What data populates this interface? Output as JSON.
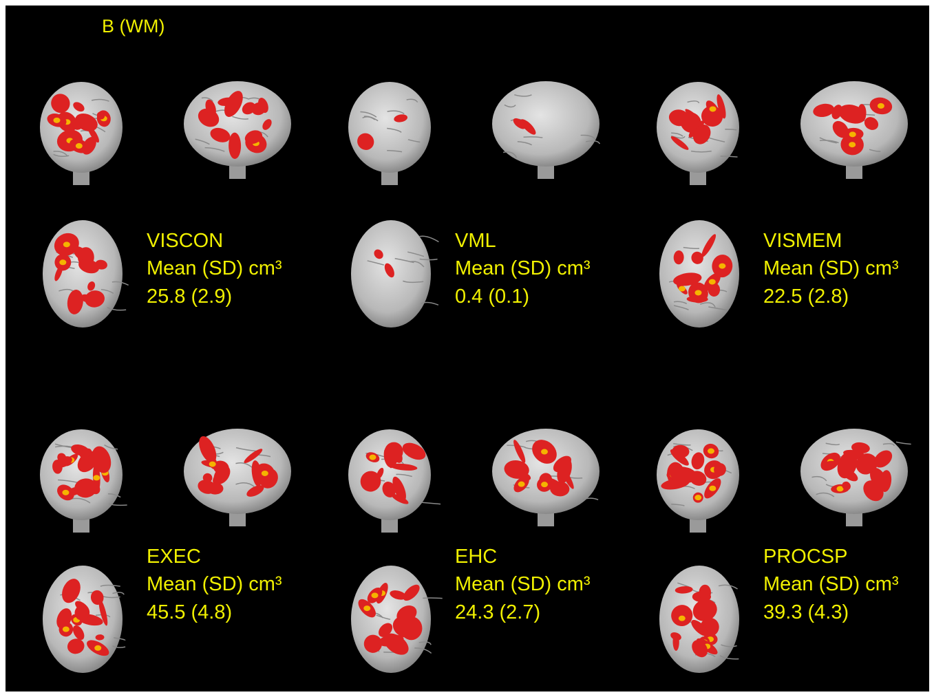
{
  "title": "B (WM)",
  "panels": [
    {
      "label": "VISCON",
      "measure": "Mean (SD) cm³",
      "value": "25.8 (2.9)"
    },
    {
      "label": "VML",
      "measure": "Mean (SD) cm³",
      "value": "0.4 (0.1)"
    },
    {
      "label": "VISMEM",
      "measure": "Mean (SD) cm³",
      "value": "22.5 (2.8)"
    },
    {
      "label": "EXEC",
      "measure": "Mean (SD) cm³",
      "value": "45.5 (4.8)"
    },
    {
      "label": "EHC",
      "measure": "Mean (SD) cm³",
      "value": "24.3 (2.7)"
    },
    {
      "label": "PROCSP",
      "measure": "Mean (SD) cm³",
      "value": "39.3 (4.3)"
    }
  ]
}
